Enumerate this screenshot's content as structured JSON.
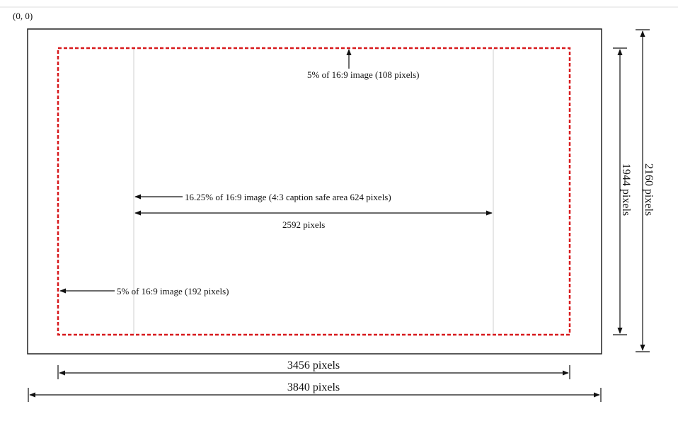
{
  "origin_label": "(0, 0)",
  "labels": {
    "top_margin": "5% of 16:9 image (108 pixels)",
    "caption_safe": "16.25% of 16:9 image (4:3 caption safe area 624 pixels)",
    "inner_width": "2592 pixels",
    "left_margin": "5% of 16:9 image (192 pixels)",
    "safe_width": "3456 pixels",
    "full_width": "3840 pixels",
    "safe_height": "1944 pixels",
    "full_height": "2160 pixels"
  },
  "colors": {
    "frame": "#222222",
    "safe_area": "#d7191c",
    "guide": "#cfcfcf",
    "top_rule": "#dddddd"
  }
}
